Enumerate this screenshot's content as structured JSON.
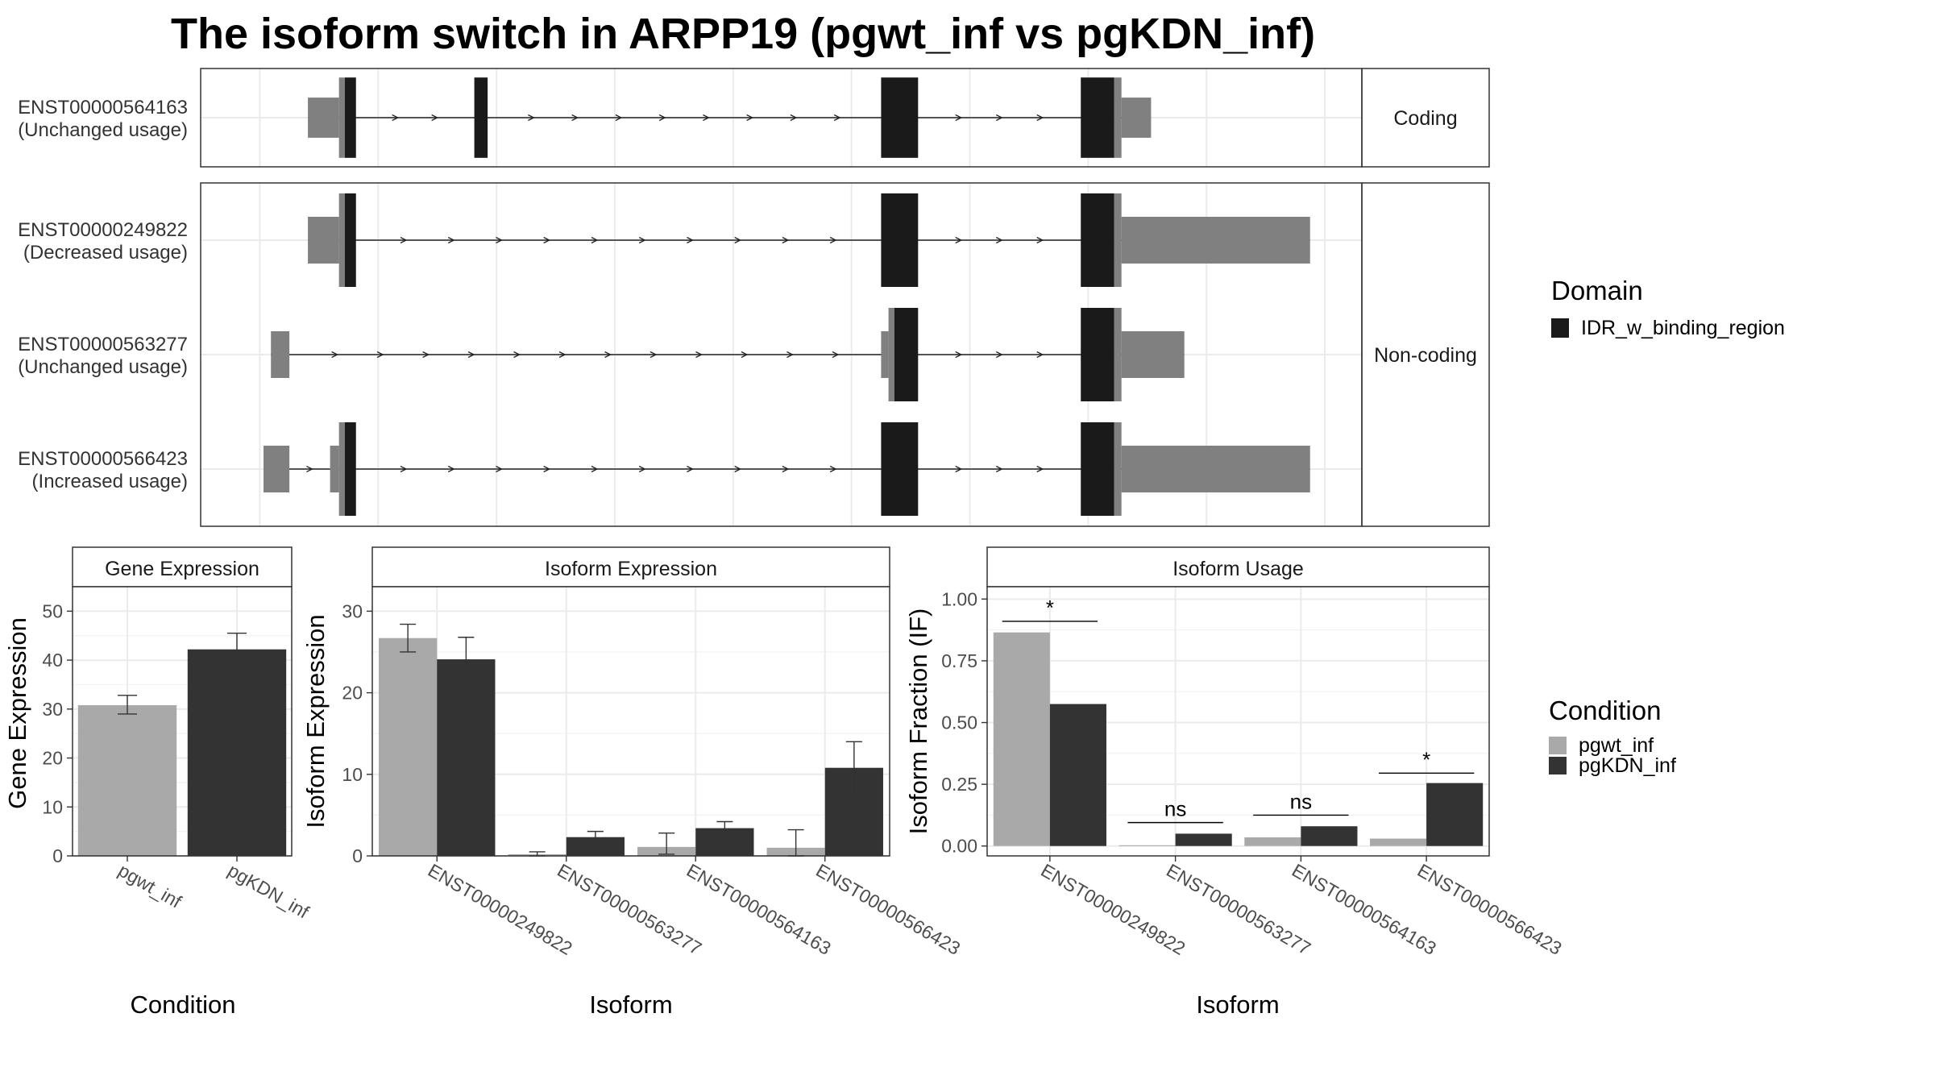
{
  "title": "The isoform switch in ARPP19 (pgwt_inf vs pgKDN_inf)",
  "colors": {
    "domain": "#1a1a1a",
    "utr": "#808080",
    "cds_edge": "#808080",
    "pgwt_inf": "#a9a9a9",
    "pgKDN_inf": "#333333",
    "grid": "#ebebeb",
    "strip_fill": "#ffffff"
  },
  "transcript_plot": {
    "facets": [
      {
        "label": "Coding",
        "transcripts": [
          {
            "id": "ENST00000564163",
            "usage": "(Unchanged usage)",
            "features": [
              {
                "kind": "utr",
                "start": 3.05,
                "end": 3.47
              },
              {
                "kind": "cds",
                "start": 3.47,
                "end": 3.55
              },
              {
                "kind": "domain",
                "start": 3.55,
                "end": 3.7
              },
              {
                "kind": "domain",
                "start": 5.3,
                "end": 5.48
              },
              {
                "kind": "domain",
                "start": 10.8,
                "end": 11.3
              },
              {
                "kind": "domain",
                "start": 13.5,
                "end": 13.95
              },
              {
                "kind": "cds",
                "start": 13.95,
                "end": 14.05
              },
              {
                "kind": "utr",
                "start": 14.05,
                "end": 14.45
              }
            ]
          }
        ]
      },
      {
        "label": "Non-coding",
        "transcripts": [
          {
            "id": "ENST00000249822",
            "usage": "(Decreased usage)",
            "features": [
              {
                "kind": "utr",
                "start": 3.05,
                "end": 3.47
              },
              {
                "kind": "cds",
                "start": 3.47,
                "end": 3.55
              },
              {
                "kind": "domain",
                "start": 3.55,
                "end": 3.7
              },
              {
                "kind": "domain",
                "start": 10.8,
                "end": 11.3
              },
              {
                "kind": "domain",
                "start": 13.5,
                "end": 13.95
              },
              {
                "kind": "cds",
                "start": 13.95,
                "end": 14.05
              },
              {
                "kind": "utr",
                "start": 14.05,
                "end": 16.6
              }
            ]
          },
          {
            "id": "ENST00000563277",
            "usage": "(Unchanged usage)",
            "features": [
              {
                "kind": "utr",
                "start": 2.55,
                "end": 2.8
              },
              {
                "kind": "utr",
                "start": 10.8,
                "end": 10.9
              },
              {
                "kind": "cds",
                "start": 10.9,
                "end": 10.98
              },
              {
                "kind": "domain",
                "start": 10.98,
                "end": 11.3
              },
              {
                "kind": "domain",
                "start": 13.5,
                "end": 13.95
              },
              {
                "kind": "cds",
                "start": 13.95,
                "end": 14.05
              },
              {
                "kind": "utr",
                "start": 14.05,
                "end": 14.9
              }
            ]
          },
          {
            "id": "ENST00000566423",
            "usage": "(Increased usage)",
            "features": [
              {
                "kind": "utr",
                "start": 2.45,
                "end": 2.8
              },
              {
                "kind": "utr",
                "start": 3.35,
                "end": 3.47
              },
              {
                "kind": "cds",
                "start": 3.47,
                "end": 3.55
              },
              {
                "kind": "domain",
                "start": 3.55,
                "end": 3.7
              },
              {
                "kind": "domain",
                "start": 10.8,
                "end": 11.3
              },
              {
                "kind": "domain",
                "start": 13.5,
                "end": 13.95
              },
              {
                "kind": "cds",
                "start": 13.95,
                "end": 14.05
              },
              {
                "kind": "utr",
                "start": 14.05,
                "end": 16.6
              }
            ]
          }
        ]
      }
    ]
  },
  "domain_legend": {
    "title": "Domain",
    "items": [
      "IDR_w_binding_region"
    ]
  },
  "condition_legend": {
    "title": "Condition",
    "items": [
      "pgwt_inf",
      "pgKDN_inf"
    ]
  },
  "chart_data": [
    {
      "type": "bar",
      "title": "Gene Expression",
      "xlabel": "Condition",
      "ylabel": "Gene Expression",
      "ylim": [
        0,
        55
      ],
      "yticks": [
        0,
        10,
        20,
        30,
        40,
        50
      ],
      "categories": [
        "pgwt_inf",
        "pgKDN_inf"
      ],
      "values": [
        30.8,
        42.2
      ],
      "err_low": [
        29.0,
        39.0
      ],
      "err_high": [
        32.8,
        45.5
      ],
      "grid": true
    },
    {
      "type": "bar",
      "title": "Isoform Expression",
      "xlabel": "Isoform",
      "ylabel": "Isoform Expression",
      "ylim": [
        0,
        33
      ],
      "yticks": [
        0,
        10,
        20,
        30
      ],
      "categories": [
        "ENST00000249822",
        "ENST00000563277",
        "ENST00000564163",
        "ENST00000566423"
      ],
      "series": [
        {
          "name": "pgwt_inf",
          "values": [
            26.7,
            0.2,
            1.1,
            1.0
          ],
          "err_low": [
            25.0,
            0.0,
            0.2,
            0.0
          ],
          "err_high": [
            28.4,
            0.5,
            2.8,
            3.2
          ]
        },
        {
          "name": "pgKDN_inf",
          "values": [
            24.1,
            2.3,
            3.4,
            10.8
          ],
          "err_low": [
            21.5,
            1.6,
            2.7,
            7.6
          ],
          "err_high": [
            26.8,
            3.0,
            4.2,
            14.0
          ]
        }
      ],
      "grid": true
    },
    {
      "type": "bar",
      "title": "Isoform Usage",
      "xlabel": "Isoform",
      "ylabel": "Isoform Fraction (IF)",
      "ylim": [
        -0.04,
        1.05
      ],
      "yticks": [
        0.0,
        0.25,
        0.5,
        0.75,
        1.0
      ],
      "ytick_labels": [
        "0.00",
        "0.25",
        "0.50",
        "0.75",
        "1.00"
      ],
      "categories": [
        "ENST00000249822",
        "ENST00000563277",
        "ENST00000564163",
        "ENST00000566423"
      ],
      "series": [
        {
          "name": "pgwt_inf",
          "values": [
            0.865,
            0.003,
            0.035,
            0.03
          ]
        },
        {
          "name": "pgKDN_inf",
          "values": [
            0.575,
            0.05,
            0.08,
            0.255
          ]
        }
      ],
      "significance": [
        {
          "label": "*",
          "y": 0.91
        },
        {
          "label": "ns",
          "y": 0.095
        },
        {
          "label": "ns",
          "y": 0.125
        },
        {
          "label": "*",
          "y": 0.295
        }
      ],
      "grid": true
    }
  ]
}
